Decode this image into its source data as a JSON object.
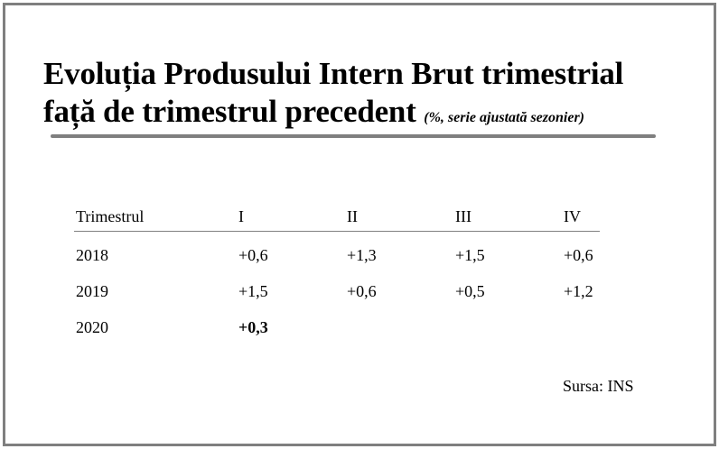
{
  "title": {
    "line1": "Evoluția Produsului Intern Brut trimestrial",
    "line2": "față de trimestrul precedent",
    "subtitle": "(%, serie ajustată sezonier)"
  },
  "table": {
    "headers": [
      "Trimestrul",
      "I",
      "II",
      "III",
      "IV"
    ],
    "rows": [
      {
        "year": "2018",
        "values": [
          "+0,6",
          "+1,3",
          "+1,5",
          "+0,6"
        ]
      },
      {
        "year": "2019",
        "values": [
          "+1,5",
          "+0,6",
          "+0,5",
          "+1,2"
        ]
      },
      {
        "year": "2020",
        "values": [
          "+0,3",
          "",
          "",
          ""
        ]
      }
    ]
  },
  "source": "Sursa: INS",
  "colors": {
    "frame": "#7f7f7f",
    "text": "#000000",
    "background": "#ffffff"
  }
}
